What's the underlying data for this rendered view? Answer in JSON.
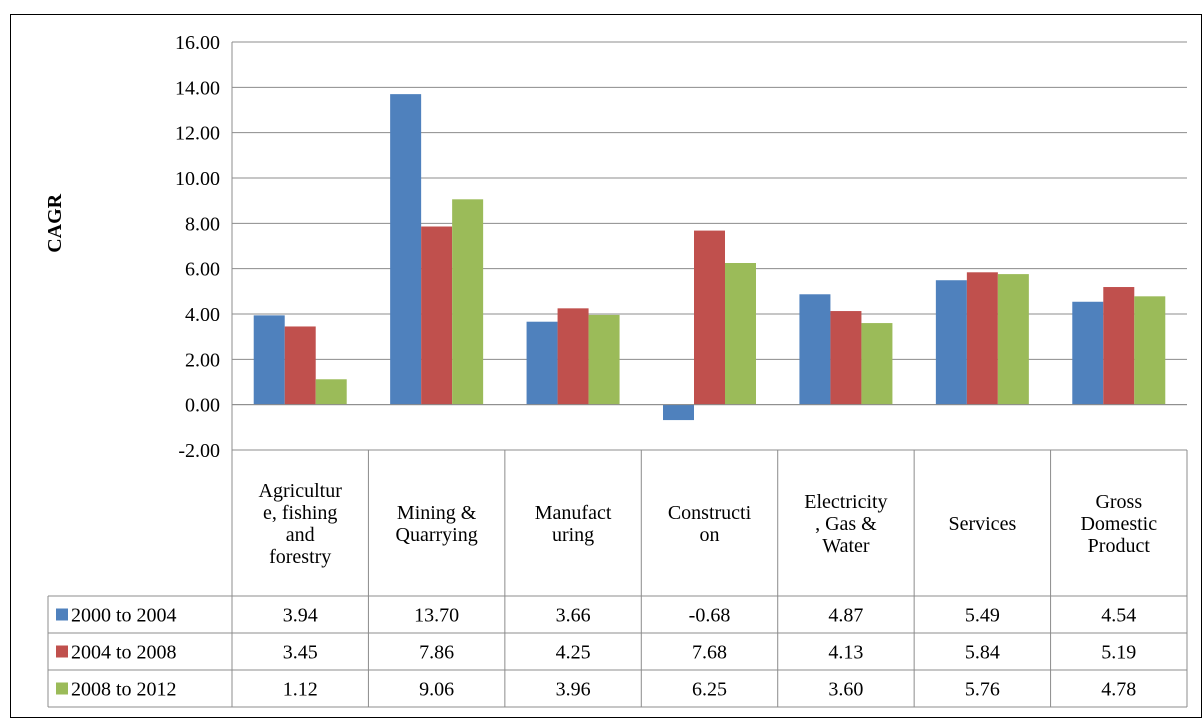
{
  "chart_data": {
    "type": "bar",
    "title": "",
    "xlabel": "",
    "ylabel": "CAGR",
    "ylim": [
      -2,
      16
    ],
    "ytick_step": 2,
    "ytick_labels": [
      "-2.00",
      "0.00",
      "2.00",
      "4.00",
      "6.00",
      "8.00",
      "10.00",
      "12.00",
      "14.00",
      "16.00"
    ],
    "grid": true,
    "legend": "data-table",
    "categories": [
      "Agriculture, fishing and forestry",
      "Mining & Quarrying",
      "Manufacturing",
      "Construction",
      "Electricity, Gas & Water",
      "Services",
      "Gross Domestic Product"
    ],
    "category_lines": [
      [
        "Agricultur",
        "e, fishing",
        "and",
        "forestry"
      ],
      [
        "Mining &",
        "Quarrying"
      ],
      [
        "Manufact",
        "uring"
      ],
      [
        "Constructi",
        "on"
      ],
      [
        "Electricity",
        ", Gas &",
        "Water"
      ],
      [
        "Services"
      ],
      [
        "Gross",
        "Domestic",
        "Product"
      ]
    ],
    "series": [
      {
        "name": "2000 to 2004",
        "color": "#4F81BD",
        "values": [
          3.94,
          13.7,
          3.66,
          -0.68,
          4.87,
          5.49,
          4.54
        ],
        "labels": [
          "3.94",
          "13.70",
          "3.66",
          "-0.68",
          "4.87",
          "5.49",
          "4.54"
        ]
      },
      {
        "name": "2004 to 2008",
        "color": "#C0504D",
        "values": [
          3.45,
          7.86,
          4.25,
          7.68,
          4.13,
          5.84,
          5.19
        ],
        "labels": [
          "3.45",
          "7.86",
          "4.25",
          "7.68",
          "4.13",
          "5.84",
          "5.19"
        ]
      },
      {
        "name": "2008 to 2012",
        "color": "#9BBB59",
        "values": [
          1.12,
          9.06,
          3.96,
          6.25,
          3.6,
          5.76,
          4.78
        ],
        "labels": [
          "1.12",
          "9.06",
          "3.96",
          "6.25",
          "3.60",
          "5.76",
          "4.78"
        ]
      }
    ]
  },
  "colors": {
    "grid": "#8c8c8c",
    "axis": "#8c8c8c",
    "text": "#000000"
  }
}
